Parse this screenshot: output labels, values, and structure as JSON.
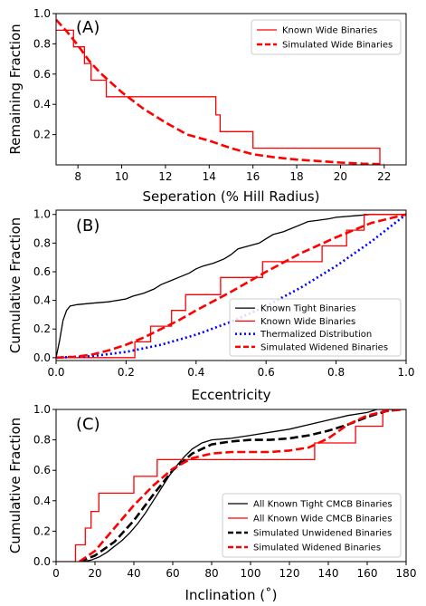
{
  "chart_data": [
    {
      "type": "line",
      "panel_label": "(A)",
      "xlabel": "Seperation (% Hill Radius)",
      "ylabel": "Remaining Fraction",
      "xlim": [
        7,
        23
      ],
      "ylim": [
        0,
        1.0
      ],
      "xticks": [
        8,
        10,
        12,
        14,
        16,
        18,
        20,
        22
      ],
      "yticks": [
        0.2,
        0.4,
        0.6,
        0.8,
        1.0
      ],
      "ytick_labels": [
        "0.2",
        "0.4",
        "0.6",
        "0.8",
        "1.0"
      ],
      "grid": false,
      "legend_position": "top-right",
      "series": [
        {
          "name": "Known Wide Binaries",
          "color": "#ff0000",
          "style": "solid",
          "step": true,
          "x": [
            7.0,
            7.8,
            7.8,
            8.3,
            8.3,
            8.6,
            8.6,
            9.3,
            9.3,
            14.3,
            14.3,
            14.5,
            14.5,
            16.0,
            16.0,
            21.8,
            21.8
          ],
          "y": [
            0.89,
            0.89,
            0.78,
            0.78,
            0.67,
            0.67,
            0.56,
            0.56,
            0.45,
            0.45,
            0.33,
            0.33,
            0.22,
            0.22,
            0.11,
            0.11,
            0.0
          ]
        },
        {
          "name": "Simulated Wide Binaries",
          "color": "#ff0000",
          "style": "dashed",
          "x": [
            7.0,
            7.5,
            8.0,
            8.5,
            9.0,
            10.0,
            11.0,
            12.0,
            13.0,
            14.0,
            15.0,
            16.0,
            17.0,
            18.0,
            19.0,
            20.0,
            21.0,
            22.0
          ],
          "y": [
            0.96,
            0.88,
            0.79,
            0.69,
            0.61,
            0.48,
            0.37,
            0.28,
            0.2,
            0.16,
            0.11,
            0.07,
            0.05,
            0.035,
            0.025,
            0.015,
            0.008,
            0.004
          ]
        }
      ]
    },
    {
      "type": "line",
      "panel_label": "(B)",
      "xlabel": "Eccentricity",
      "ylabel": "Cumulative Fraction",
      "xlim": [
        0,
        1
      ],
      "ylim": [
        -0.02,
        1.03
      ],
      "xticks": [
        0.0,
        0.2,
        0.4,
        0.6,
        0.8,
        1.0
      ],
      "xtick_labels": [
        "0.0",
        "0.2",
        "0.4",
        "0.6",
        "0.8",
        "1.0"
      ],
      "yticks": [
        0.0,
        0.2,
        0.4,
        0.6,
        0.8,
        1.0
      ],
      "ytick_labels": [
        "0.0",
        "0.2",
        "0.4",
        "0.6",
        "0.8",
        "1.0"
      ],
      "grid": false,
      "legend_position": "bottom-right",
      "series": [
        {
          "name": "Known Tight Binaries",
          "color": "#000000",
          "style": "solid",
          "x": [
            0.0,
            0.01,
            0.02,
            0.03,
            0.04,
            0.06,
            0.1,
            0.15,
            0.2,
            0.22,
            0.25,
            0.28,
            0.3,
            0.33,
            0.35,
            0.38,
            0.4,
            0.42,
            0.45,
            0.48,
            0.5,
            0.52,
            0.55,
            0.58,
            0.6,
            0.62,
            0.65,
            0.68,
            0.7,
            0.72,
            0.75,
            0.78,
            0.8,
            0.85,
            0.9,
            0.95,
            1.0
          ],
          "y": [
            0.0,
            0.12,
            0.26,
            0.33,
            0.36,
            0.37,
            0.38,
            0.39,
            0.41,
            0.43,
            0.45,
            0.48,
            0.51,
            0.54,
            0.56,
            0.59,
            0.62,
            0.64,
            0.66,
            0.69,
            0.72,
            0.76,
            0.78,
            0.8,
            0.83,
            0.86,
            0.88,
            0.91,
            0.93,
            0.95,
            0.96,
            0.97,
            0.98,
            0.99,
            1.0,
            1.0,
            1.0
          ]
        },
        {
          "name": "Known Wide Binaries",
          "color": "#ff0000",
          "style": "solid",
          "step": true,
          "x": [
            0.0,
            0.225,
            0.225,
            0.27,
            0.27,
            0.33,
            0.33,
            0.37,
            0.37,
            0.47,
            0.47,
            0.59,
            0.59,
            0.76,
            0.76,
            0.83,
            0.83,
            0.88,
            0.88,
            1.0
          ],
          "y": [
            0.0,
            0.0,
            0.11,
            0.11,
            0.22,
            0.22,
            0.33,
            0.33,
            0.44,
            0.44,
            0.56,
            0.56,
            0.67,
            0.67,
            0.78,
            0.78,
            0.89,
            0.89,
            1.0,
            1.0
          ]
        },
        {
          "name": "Thermalized Distribution",
          "color": "#0000ff",
          "style": "dotted",
          "x": [
            0.0,
            0.1,
            0.2,
            0.3,
            0.4,
            0.5,
            0.6,
            0.7,
            0.8,
            0.9,
            1.0
          ],
          "y": [
            0.0,
            0.01,
            0.04,
            0.09,
            0.16,
            0.25,
            0.36,
            0.49,
            0.64,
            0.81,
            1.0
          ]
        },
        {
          "name": "Simulated Widened Binaries",
          "color": "#ff0000",
          "style": "dashed",
          "x": [
            0.0,
            0.05,
            0.1,
            0.15,
            0.2,
            0.25,
            0.3,
            0.35,
            0.4,
            0.5,
            0.6,
            0.7,
            0.8,
            0.9,
            1.0
          ],
          "y": [
            0.0,
            0.005,
            0.02,
            0.05,
            0.09,
            0.14,
            0.2,
            0.26,
            0.33,
            0.46,
            0.6,
            0.73,
            0.84,
            0.94,
            1.0
          ]
        }
      ]
    },
    {
      "type": "line",
      "panel_label": "(C)",
      "xlabel": "Inclination (˚)",
      "ylabel": "Cumulative Fraction",
      "xlim": [
        0,
        180
      ],
      "ylim": [
        0,
        1.0
      ],
      "xticks": [
        0,
        20,
        40,
        60,
        80,
        100,
        120,
        140,
        160,
        180
      ],
      "xtick_labels": [
        "0",
        "20",
        "40",
        "60",
        "80",
        "100",
        "120",
        "140",
        "160",
        "180"
      ],
      "yticks": [
        0.0,
        0.2,
        0.4,
        0.6,
        0.8,
        1.0
      ],
      "ytick_labels": [
        "0.0",
        "0.2",
        "0.4",
        "0.6",
        "0.8",
        "1.0"
      ],
      "grid": false,
      "legend_position": "bottom-right",
      "series": [
        {
          "name": "All Known Tight CMCB Binaries",
          "color": "#000000",
          "style": "solid",
          "x": [
            14,
            18,
            22,
            26,
            30,
            34,
            38,
            42,
            46,
            50,
            54,
            58,
            62,
            66,
            70,
            75,
            80,
            90,
            100,
            110,
            120,
            130,
            140,
            150,
            160,
            165,
            170,
            180
          ],
          "y": [
            0.0,
            0.01,
            0.03,
            0.06,
            0.1,
            0.14,
            0.19,
            0.25,
            0.32,
            0.4,
            0.48,
            0.56,
            0.63,
            0.69,
            0.74,
            0.78,
            0.8,
            0.81,
            0.83,
            0.85,
            0.87,
            0.9,
            0.93,
            0.96,
            0.98,
            1.0,
            1.0,
            1.0
          ]
        },
        {
          "name": "All Known Wide CMCB Binaries",
          "color": "#ff0000",
          "style": "solid",
          "step": true,
          "x": [
            0,
            10,
            10,
            15,
            15,
            18,
            18,
            22,
            22,
            40,
            40,
            52,
            52,
            56,
            56,
            75,
            75,
            133,
            133,
            154,
            154,
            168,
            168,
            180
          ],
          "y": [
            0.0,
            0.0,
            0.11,
            0.11,
            0.22,
            0.22,
            0.33,
            0.33,
            0.45,
            0.45,
            0.56,
            0.56,
            0.67,
            0.67,
            0.67,
            0.67,
            0.67,
            0.67,
            0.78,
            0.78,
            0.89,
            0.89,
            1.0,
            1.0
          ]
        },
        {
          "name": "Simulated Unwidened Binaries",
          "color": "#000000",
          "style": "dashed",
          "x": [
            12,
            20,
            30,
            40,
            50,
            60,
            70,
            80,
            90,
            100,
            110,
            120,
            130,
            140,
            150,
            160,
            170,
            178
          ],
          "y": [
            0.0,
            0.04,
            0.13,
            0.27,
            0.44,
            0.6,
            0.71,
            0.77,
            0.79,
            0.8,
            0.8,
            0.81,
            0.83,
            0.86,
            0.9,
            0.95,
            0.99,
            1.0
          ]
        },
        {
          "name": "Simulated Widened Binaries",
          "color": "#ff0000",
          "style": "dashed",
          "x": [
            12,
            20,
            30,
            40,
            50,
            60,
            70,
            80,
            90,
            100,
            110,
            120,
            130,
            140,
            150,
            160,
            170,
            178
          ],
          "y": [
            0.0,
            0.07,
            0.22,
            0.37,
            0.5,
            0.61,
            0.68,
            0.71,
            0.72,
            0.72,
            0.72,
            0.73,
            0.75,
            0.81,
            0.9,
            0.96,
            0.99,
            1.0
          ]
        }
      ]
    }
  ]
}
